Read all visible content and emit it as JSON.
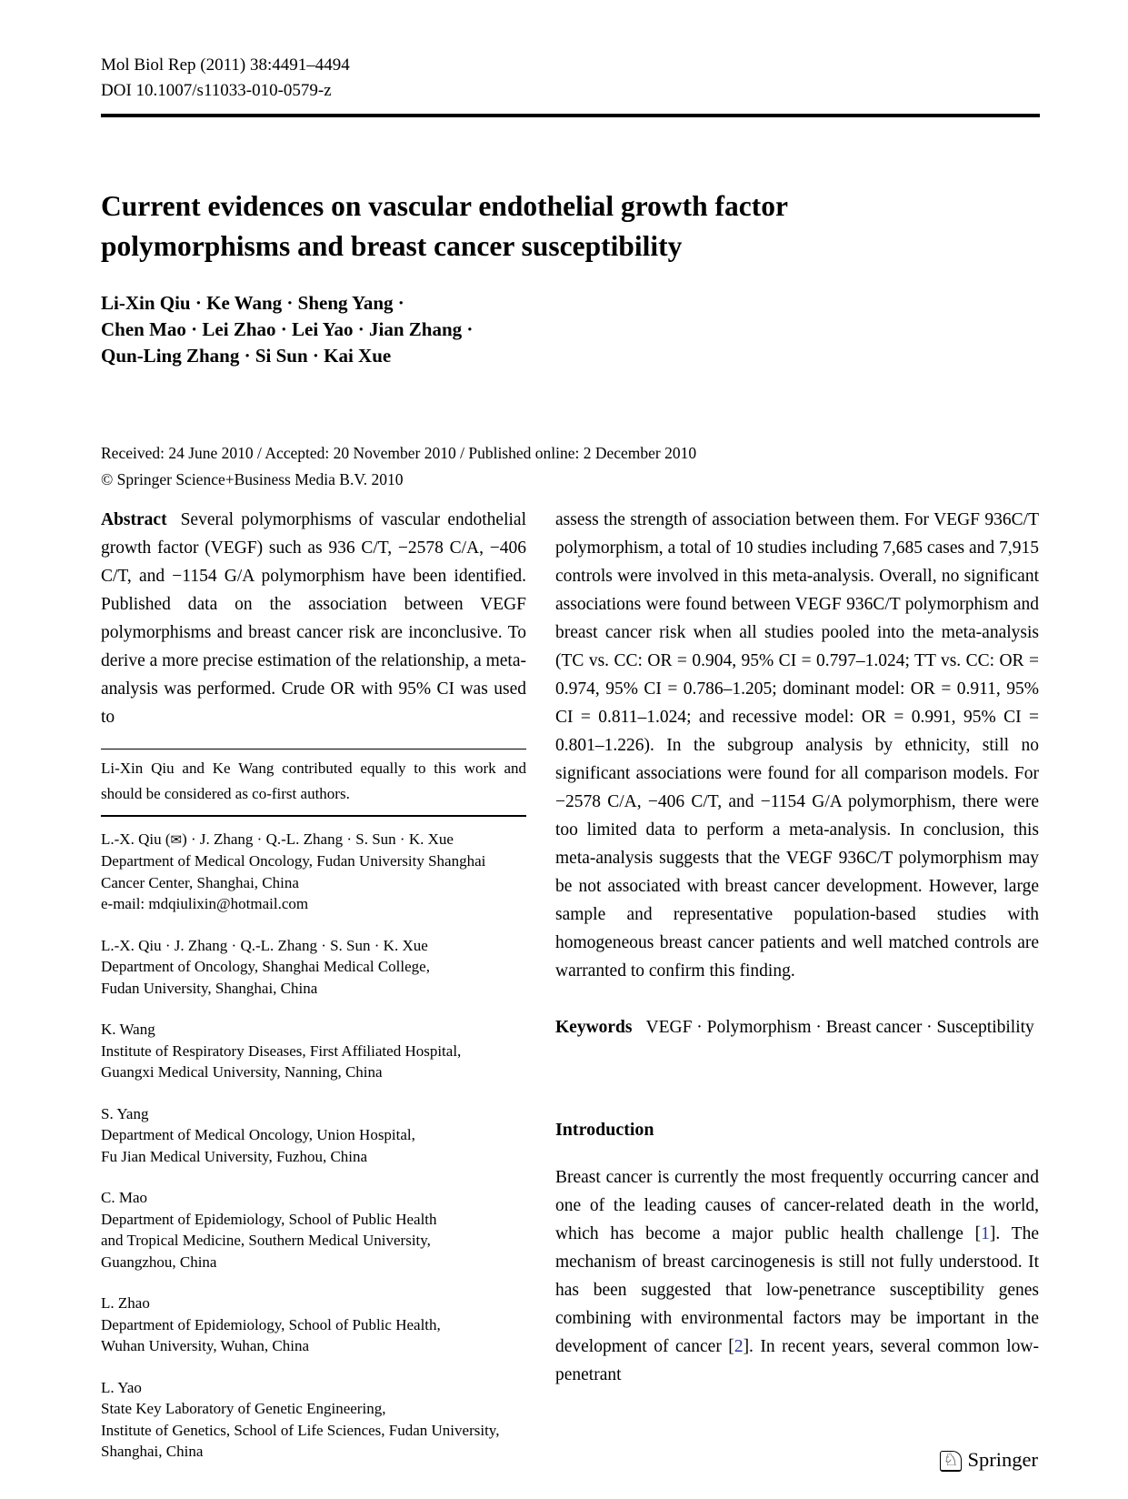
{
  "journal": {
    "ref": "Mol Biol Rep (2011) 38:4491–4494",
    "doi": "DOI 10.1007/s11033-010-0579-z"
  },
  "title": {
    "line1": "Current evidences on vascular endothelial growth factor",
    "line2": "polymorphisms and breast cancer susceptibility"
  },
  "authors": {
    "line1": "Li-Xin Qiu · Ke Wang · Sheng Yang ·",
    "line2": "Chen Mao · Lei Zhao · Lei Yao · Jian Zhang ·",
    "line3": "Qun-Ling Zhang · Si Sun · Kai Xue"
  },
  "dates": "Received: 24 June 2010 / Accepted: 20 November 2010 / Published online: 2 December 2010",
  "copyright": "© Springer Science+Business Media B.V. 2010",
  "abstract": {
    "label": "Abstract",
    "left_text": "Several polymorphisms of vascular endothelial growth factor (VEGF) such as 936 C/T, −2578 C/A, −406 C/T, and −1154 G/A polymorphism have been identified. Published data on the association between VEGF polymorphisms and breast cancer risk are inconclusive. To derive a more precise estimation of the relationship, a meta-analysis was performed. Crude OR with 95% CI was used to",
    "right_text": "assess the strength of association between them. For VEGF 936C/T polymorphism, a total of 10 studies including 7,685 cases and 7,915 controls were involved in this meta-analysis. Overall, no significant associations were found between VEGF 936C/T polymorphism and breast cancer risk when all studies pooled into the meta-analysis (TC vs. CC: OR = 0.904, 95% CI = 0.797–1.024; TT vs. CC: OR = 0.974, 95% CI = 0.786–1.205; dominant model: OR = 0.911, 95% CI = 0.811–1.024; and recessive model: OR = 0.991, 95% CI = 0.801–1.226). In the subgroup analysis by ethnicity, still no significant associations were found for all comparison models. For −2578 C/A, −406 C/T, and −1154 G/A polymorphism, there were too limited data to perform a meta-analysis. In conclusion, this meta-analysis suggests that the VEGF 936C/T polymorphism may be not associated with breast cancer development. However, large sample and representative population-based studies with homogeneous breast cancer patients and well matched controls are warranted to confirm this finding."
  },
  "footnote": "Li-Xin Qiu and Ke Wang contributed equally to this work and should be considered as co-first authors.",
  "affiliations": [
    {
      "names_pre": "L.-X. Qiu (",
      "names_post": ") · J. Zhang · Q.-L. Zhang · S. Sun · K. Xue",
      "lines": [
        "Department of Medical Oncology, Fudan University Shanghai",
        "Cancer Center, Shanghai, China",
        "e-mail: mdqiulixin@hotmail.com"
      ]
    },
    {
      "names": "L.-X. Qiu · J. Zhang · Q.-L. Zhang · S. Sun · K. Xue",
      "lines": [
        "Department of Oncology, Shanghai Medical College,",
        "Fudan University, Shanghai, China"
      ]
    },
    {
      "names": "K. Wang",
      "lines": [
        "Institute of Respiratory Diseases, First Affiliated Hospital,",
        "Guangxi Medical University, Nanning, China"
      ]
    },
    {
      "names": "S. Yang",
      "lines": [
        "Department of Medical Oncology, Union Hospital,",
        "Fu Jian Medical University, Fuzhou, China"
      ]
    },
    {
      "names": "C. Mao",
      "lines": [
        "Department of Epidemiology, School of Public Health",
        "and Tropical Medicine, Southern Medical University,",
        "Guangzhou, China"
      ]
    },
    {
      "names": "L. Zhao",
      "lines": [
        "Department of Epidemiology, School of Public Health,",
        "Wuhan University, Wuhan, China"
      ]
    },
    {
      "names": "L. Yao",
      "lines": [
        "State Key Laboratory of Genetic Engineering,",
        "Institute of Genetics, School of Life Sciences, Fudan University,",
        "Shanghai, China"
      ]
    }
  ],
  "keywords": {
    "label": "Keywords",
    "text": "VEGF · Polymorphism · Breast cancer · Susceptibility"
  },
  "introduction": {
    "heading": "Introduction",
    "seg1": "Breast cancer is currently the most frequently occurring cancer and one of the leading causes of cancer-related death in the world, which has become a major public health challenge [",
    "ref1": "1",
    "seg2": "]. The mechanism of breast carcinogenesis is still not fully understood. It has been suggested that low-penetrance susceptibility genes combining with environmental factors may be important in the development of cancer [",
    "ref2": "2",
    "seg3": "]. In recent years, several common low-penetrant"
  },
  "icons": {
    "envelope": "✉",
    "springer_horse": "♘"
  },
  "footer": {
    "publisher": "Springer"
  },
  "colors": {
    "reference_link": "#2b3aa0",
    "text": "#000000",
    "background": "#ffffff"
  }
}
